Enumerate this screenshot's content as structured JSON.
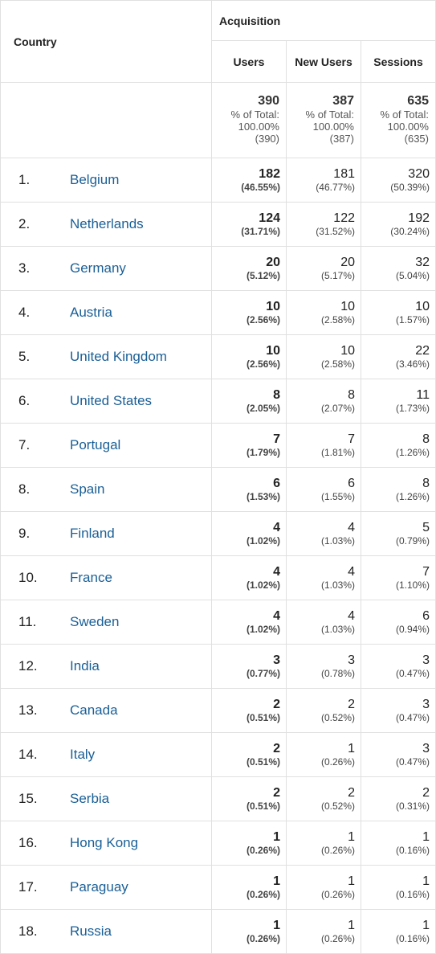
{
  "header": {
    "country_label": "Country",
    "group_label": "Acquisition",
    "users_label": "Users",
    "new_users_label": "New Users",
    "sessions_label": "Sessions"
  },
  "totals": {
    "users": {
      "value": "390",
      "line1": "% of Total:",
      "line2": "100.00%",
      "line3": "(390)"
    },
    "new_users": {
      "value": "387",
      "line1": "% of Total:",
      "line2": "100.00%",
      "line3": "(387)"
    },
    "sessions": {
      "value": "635",
      "line1": "% of Total:",
      "line2": "100.00%",
      "line3": "(635)"
    }
  },
  "rows": [
    {
      "idx": "1.",
      "country": "Belgium",
      "users": "182",
      "users_pct": "(46.55%)",
      "new_users": "181",
      "new_users_pct": "(46.77%)",
      "sessions": "320",
      "sessions_pct": "(50.39%)"
    },
    {
      "idx": "2.",
      "country": "Netherlands",
      "users": "124",
      "users_pct": "(31.71%)",
      "new_users": "122",
      "new_users_pct": "(31.52%)",
      "sessions": "192",
      "sessions_pct": "(30.24%)"
    },
    {
      "idx": "3.",
      "country": "Germany",
      "users": "20",
      "users_pct": "(5.12%)",
      "new_users": "20",
      "new_users_pct": "(5.17%)",
      "sessions": "32",
      "sessions_pct": "(5.04%)"
    },
    {
      "idx": "4.",
      "country": "Austria",
      "users": "10",
      "users_pct": "(2.56%)",
      "new_users": "10",
      "new_users_pct": "(2.58%)",
      "sessions": "10",
      "sessions_pct": "(1.57%)"
    },
    {
      "idx": "5.",
      "country": "United Kingdom",
      "users": "10",
      "users_pct": "(2.56%)",
      "new_users": "10",
      "new_users_pct": "(2.58%)",
      "sessions": "22",
      "sessions_pct": "(3.46%)"
    },
    {
      "idx": "6.",
      "country": "United States",
      "users": "8",
      "users_pct": "(2.05%)",
      "new_users": "8",
      "new_users_pct": "(2.07%)",
      "sessions": "11",
      "sessions_pct": "(1.73%)"
    },
    {
      "idx": "7.",
      "country": "Portugal",
      "users": "7",
      "users_pct": "(1.79%)",
      "new_users": "7",
      "new_users_pct": "(1.81%)",
      "sessions": "8",
      "sessions_pct": "(1.26%)"
    },
    {
      "idx": "8.",
      "country": "Spain",
      "users": "6",
      "users_pct": "(1.53%)",
      "new_users": "6",
      "new_users_pct": "(1.55%)",
      "sessions": "8",
      "sessions_pct": "(1.26%)"
    },
    {
      "idx": "9.",
      "country": "Finland",
      "users": "4",
      "users_pct": "(1.02%)",
      "new_users": "4",
      "new_users_pct": "(1.03%)",
      "sessions": "5",
      "sessions_pct": "(0.79%)"
    },
    {
      "idx": "10.",
      "country": "France",
      "users": "4",
      "users_pct": "(1.02%)",
      "new_users": "4",
      "new_users_pct": "(1.03%)",
      "sessions": "7",
      "sessions_pct": "(1.10%)"
    },
    {
      "idx": "11.",
      "country": "Sweden",
      "users": "4",
      "users_pct": "(1.02%)",
      "new_users": "4",
      "new_users_pct": "(1.03%)",
      "sessions": "6",
      "sessions_pct": "(0.94%)"
    },
    {
      "idx": "12.",
      "country": "India",
      "users": "3",
      "users_pct": "(0.77%)",
      "new_users": "3",
      "new_users_pct": "(0.78%)",
      "sessions": "3",
      "sessions_pct": "(0.47%)"
    },
    {
      "idx": "13.",
      "country": "Canada",
      "users": "2",
      "users_pct": "(0.51%)",
      "new_users": "2",
      "new_users_pct": "(0.52%)",
      "sessions": "3",
      "sessions_pct": "(0.47%)"
    },
    {
      "idx": "14.",
      "country": "Italy",
      "users": "2",
      "users_pct": "(0.51%)",
      "new_users": "1",
      "new_users_pct": "(0.26%)",
      "sessions": "3",
      "sessions_pct": "(0.47%)"
    },
    {
      "idx": "15.",
      "country": "Serbia",
      "users": "2",
      "users_pct": "(0.51%)",
      "new_users": "2",
      "new_users_pct": "(0.52%)",
      "sessions": "2",
      "sessions_pct": "(0.31%)"
    },
    {
      "idx": "16.",
      "country": "Hong Kong",
      "users": "1",
      "users_pct": "(0.26%)",
      "new_users": "1",
      "new_users_pct": "(0.26%)",
      "sessions": "1",
      "sessions_pct": "(0.16%)"
    },
    {
      "idx": "17.",
      "country": "Paraguay",
      "users": "1",
      "users_pct": "(0.26%)",
      "new_users": "1",
      "new_users_pct": "(0.26%)",
      "sessions": "1",
      "sessions_pct": "(0.16%)"
    },
    {
      "idx": "18.",
      "country": "Russia",
      "users": "1",
      "users_pct": "(0.26%)",
      "new_users": "1",
      "new_users_pct": "(0.26%)",
      "sessions": "1",
      "sessions_pct": "(0.16%)"
    }
  ]
}
